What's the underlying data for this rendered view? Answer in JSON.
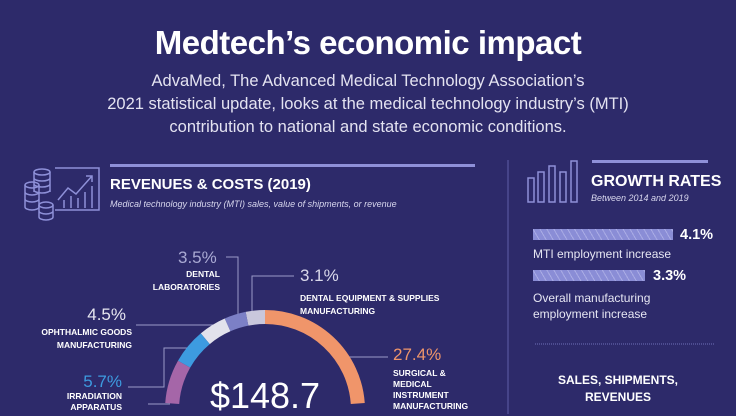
{
  "header": {
    "title": "Medtech’s economic impact",
    "subtitle_lines": [
      "AdvaMed, The Advanced Medical Technology Association’s",
      "2021 statistical update, looks at the medical technology industry’s (MTI)",
      "contribution to national and state economic conditions."
    ]
  },
  "revenues": {
    "heading": "REVENUES & COSTS (2019)",
    "subheading": "Medical technology industry (MTI) sales, value of  shipments, or revenue",
    "icon": "coins-growth-chart-icon",
    "center_value": "$148.7"
  },
  "chart_data": {
    "type": "pie",
    "donut": true,
    "unit": "%",
    "slices": [
      {
        "label": "SURGICAL & MEDICAL INSTRUMENT MANUFACTURING",
        "value": 27.4,
        "display": "27.4%",
        "color": "#f0956a"
      },
      {
        "label": "DENTAL EQUIPMENT & SUPPLIES MANUFACTURING",
        "value": 3.1,
        "display": "3.1%",
        "color": "#c9c7dc"
      },
      {
        "label": "DENTAL LABORATORIES",
        "value": 3.5,
        "display": "3.5%",
        "color": "#7c80c6"
      },
      {
        "label": "OPHTHALMIC GOODS MANUFACTURING",
        "value": 4.5,
        "display": "4.5%",
        "color": "#e2e2ec"
      },
      {
        "label": "IRRADIATION APPARATUS",
        "value": 5.7,
        "display": "5.7%",
        "color": "#3d9be0"
      }
    ],
    "other_segment_color": "#a566a8"
  },
  "growth": {
    "heading": "GROWTH RATES",
    "subheading": "Between 2014 and 2019",
    "icon": "bar-chart-icon",
    "items": [
      {
        "value": "4.1%",
        "percent": 4.1,
        "label_lines": [
          "MTI employment increase"
        ]
      },
      {
        "value": "3.3%",
        "percent": 3.3,
        "label_lines": [
          "Overall manufacturing",
          "employment increase"
        ]
      }
    ],
    "next_heading_lines": [
      "SALES, SHIPMENTS,",
      "REVENUES"
    ]
  }
}
